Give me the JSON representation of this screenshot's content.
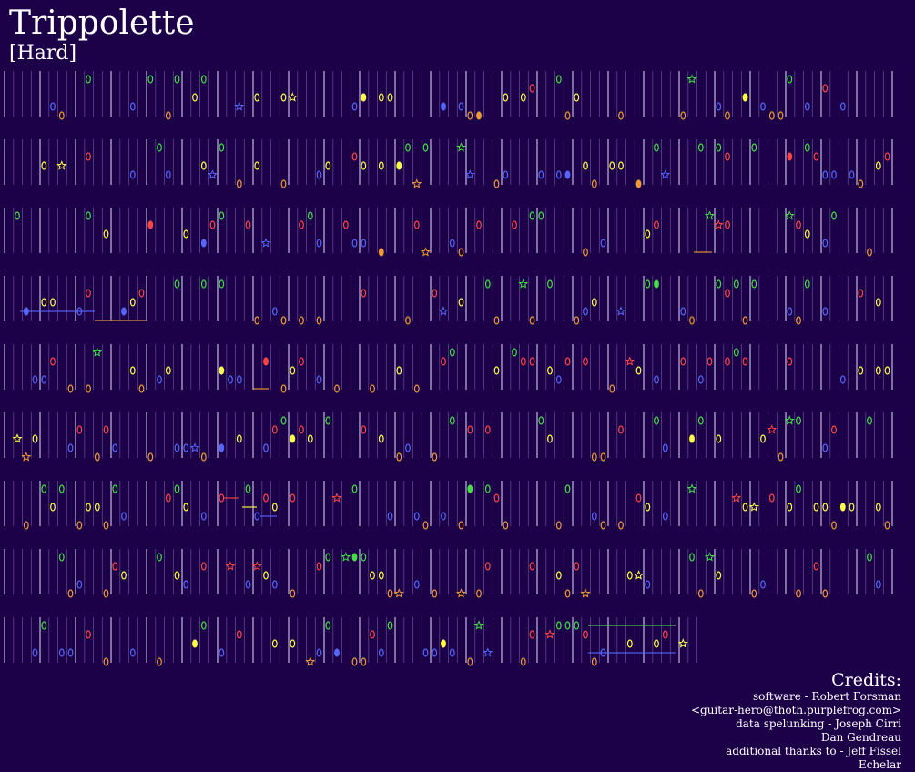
{
  "song": {
    "title": "Trippolette",
    "difficulty": "[Hard]"
  },
  "credits": {
    "heading": "Credits:",
    "lines": [
      "software - Robert Forsman",
      "<guitar-hero@thoth.purplefrog.com>",
      "data spelunking - Joseph Cirri",
      "Dan Gendreau",
      "additional thanks to - Jeff Fissel",
      "Echelar"
    ]
  },
  "colors": {
    "background": "#1c0048",
    "green": "#44dd44",
    "red": "#ff4444",
    "yellow": "#ffff44",
    "blue": "#5566ff",
    "orange": "#ee9933",
    "beat_line": "#8877bb",
    "measure_line": "#ddddff"
  },
  "chart_data": {
    "type": "note-chart",
    "lanes": [
      "green",
      "red",
      "yellow",
      "blue",
      "orange"
    ],
    "rows": 9,
    "note_shapes": [
      "oval",
      "star",
      "filled-oval"
    ],
    "sustains": [
      {
        "row": 2,
        "lane": "orange"
      },
      {
        "row": 3,
        "lane": "blue"
      },
      {
        "row": 3,
        "lane": "orange"
      },
      {
        "row": 4,
        "lane": "orange"
      },
      {
        "row": 6,
        "lane": "red"
      },
      {
        "row": 6,
        "lane": "yellow"
      },
      {
        "row": 6,
        "lane": "blue"
      },
      {
        "row": 8,
        "lane": "green"
      },
      {
        "row": 8,
        "lane": "blue"
      }
    ]
  }
}
